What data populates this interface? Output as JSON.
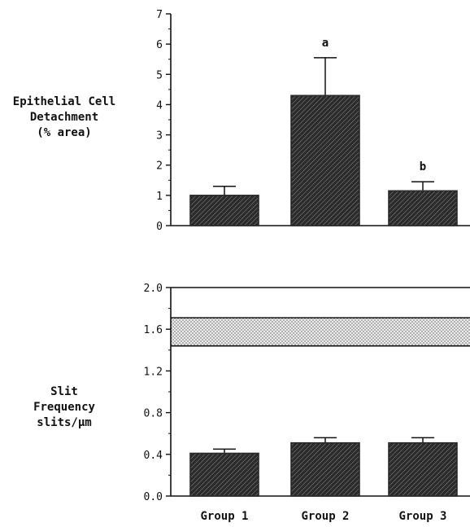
{
  "chart_data": [
    {
      "type": "bar",
      "ylabel_lines": [
        "Epithelial Cell",
        "Detachment",
        "(% area)"
      ],
      "categories": [
        "Group 1",
        "Group 2",
        "Group 3"
      ],
      "values": [
        1.0,
        4.3,
        1.15
      ],
      "errors": [
        0.3,
        1.25,
        0.3
      ],
      "annotations": [
        "",
        "a",
        "b"
      ],
      "ylim": [
        0,
        7
      ],
      "yticks": [
        "0",
        "1",
        "2",
        "3",
        "4",
        "5",
        "6",
        "7"
      ],
      "grid": false
    },
    {
      "type": "bar",
      "ylabel_lines": [
        "Slit",
        "Frequency",
        "slits/µm"
      ],
      "categories": [
        "Group 1",
        "Group 2",
        "Group 3"
      ],
      "values": [
        0.41,
        0.51,
        0.51
      ],
      "errors": [
        0.04,
        0.05,
        0.05
      ],
      "ylim": [
        0,
        2.0
      ],
      "yticks": [
        "0.0",
        "0.4",
        "0.8",
        "1.2",
        "1.6",
        "2.0"
      ],
      "reference_band": [
        1.44,
        1.71
      ],
      "grid": false
    }
  ],
  "colors": {
    "bar": "#2b2b2b",
    "axis": "#111111",
    "band": "#d8d8d8"
  }
}
